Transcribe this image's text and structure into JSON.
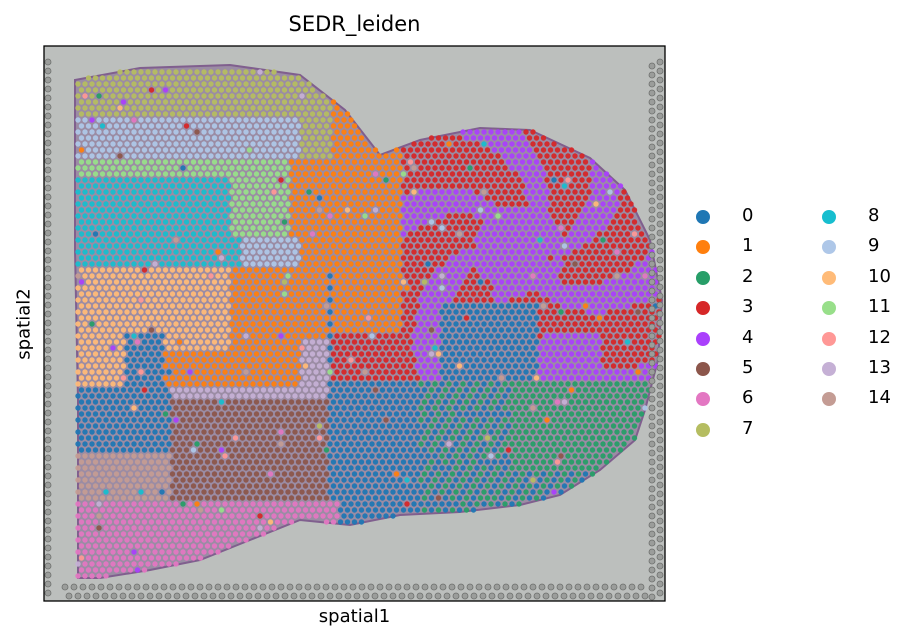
{
  "chart_data": {
    "type": "scatter",
    "title": "SEDR_leiden",
    "xlabel": "spatial1",
    "ylabel": "spatial2",
    "grid": false,
    "legend_placement": "right",
    "series": [
      {
        "name": "0",
        "color": "#1f77b4"
      },
      {
        "name": "1",
        "color": "#ff7f0e"
      },
      {
        "name": "2",
        "color": "#279e68"
      },
      {
        "name": "3",
        "color": "#d62728"
      },
      {
        "name": "4",
        "color": "#aa40fc"
      },
      {
        "name": "5",
        "color": "#8c564b"
      },
      {
        "name": "6",
        "color": "#e377c2"
      },
      {
        "name": "7",
        "color": "#b5bd61"
      },
      {
        "name": "8",
        "color": "#17becf"
      },
      {
        "name": "9",
        "color": "#aec7e8"
      },
      {
        "name": "10",
        "color": "#ffbb78"
      },
      {
        "name": "11",
        "color": "#98df8a"
      },
      {
        "name": "12",
        "color": "#ff9896"
      },
      {
        "name": "13",
        "color": "#c5b0d5"
      },
      {
        "name": "14",
        "color": "#c49c94"
      }
    ]
  }
}
